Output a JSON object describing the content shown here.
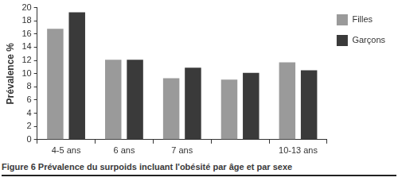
{
  "chart_data": {
    "type": "bar",
    "title": "Figure 6 Prévalence du surpoids incluant l'obésité par âge et par sexe",
    "y_label": "Prévalence %",
    "categories": [
      "4-5 ans",
      "6 ans",
      "7 ans",
      null,
      "10-13 ans"
    ],
    "series": [
      {
        "name": "Filles",
        "color": "#9a9a9a",
        "values": [
          16.8,
          12.1,
          9.3,
          9.1,
          11.7
        ]
      },
      {
        "name": "Garçons",
        "color": "#3a3a3a",
        "values": [
          19.3,
          12.1,
          10.9,
          10.1,
          10.5
        ]
      }
    ],
    "ylim": [
      0,
      20
    ],
    "yticks": [
      0,
      2,
      4,
      6,
      8,
      10,
      12,
      14,
      16,
      18,
      20
    ],
    "grid": false,
    "legend": "upper right"
  }
}
